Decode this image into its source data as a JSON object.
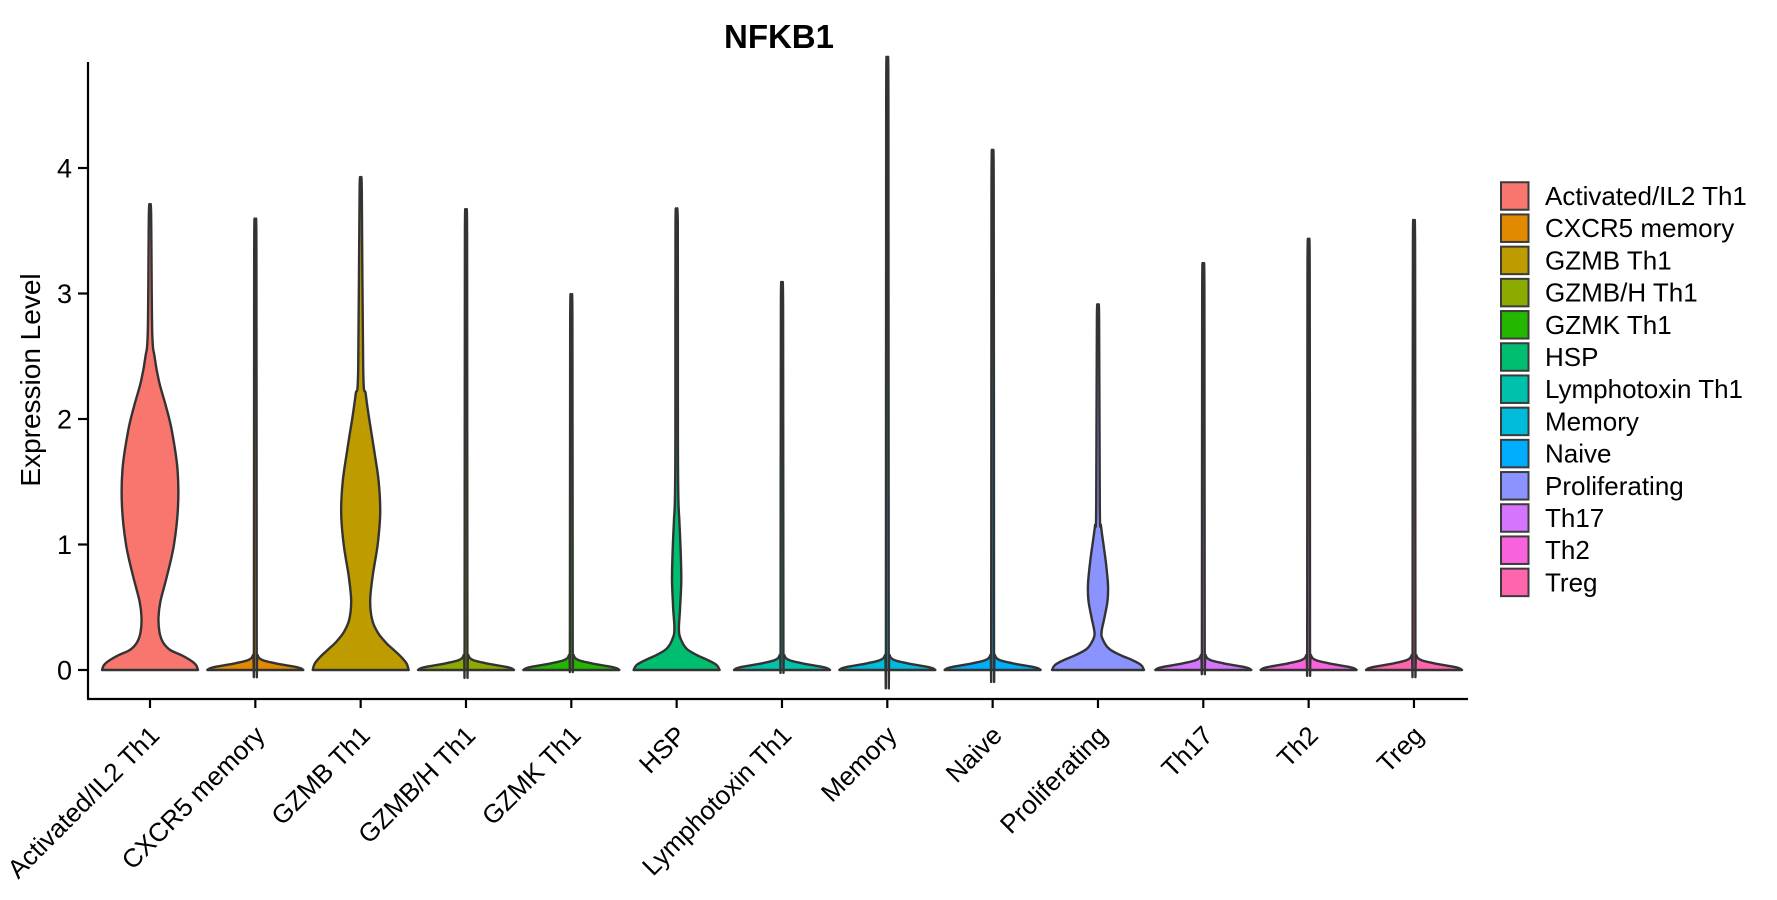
{
  "title": "NFKB1",
  "y_axis": {
    "label": "Expression Level",
    "ticks": [
      "0",
      "1",
      "2",
      "3",
      "4"
    ]
  },
  "legend": {
    "position": "right",
    "items": [
      {
        "label": "Activated/IL2 Th1",
        "color": "#F8766D"
      },
      {
        "label": "CXCR5 memory",
        "color": "#E18A00"
      },
      {
        "label": "GZMB Th1",
        "color": "#BE9C00"
      },
      {
        "label": "GZMB/H Th1",
        "color": "#8CAB00"
      },
      {
        "label": "GZMK Th1",
        "color": "#24B700"
      },
      {
        "label": "HSP",
        "color": "#00BE70"
      },
      {
        "label": "Lymphotoxin Th1",
        "color": "#00C1AB"
      },
      {
        "label": "Memory",
        "color": "#00BBDA"
      },
      {
        "label": "Naive",
        "color": "#00ACFC"
      },
      {
        "label": "Proliferating",
        "color": "#8B93FF"
      },
      {
        "label": "Th17",
        "color": "#D575FE"
      },
      {
        "label": "Th2",
        "color": "#F962DD"
      },
      {
        "label": "Treg",
        "color": "#FF65AC"
      }
    ]
  },
  "chart_data": {
    "type": "violin",
    "title": "NFKB1",
    "xlabel": "",
    "ylabel": "Expression Level",
    "ylim": [
      0,
      4.75
    ],
    "yticks": [
      0,
      1,
      2,
      3,
      4
    ],
    "grid": false,
    "legend_position": "right",
    "x_tick_rotation": -45,
    "categories": [
      "Activated/IL2 Th1",
      "CXCR5 memory",
      "GZMB Th1",
      "GZMB/H Th1",
      "GZMK Th1",
      "HSP",
      "Lymphotoxin Th1",
      "Memory",
      "Naive",
      "Proliferating",
      "Th17",
      "Th2",
      "Treg"
    ],
    "series": [
      {
        "name": "Activated/IL2 Th1",
        "color": "#F8766D",
        "max_expression": 3.64,
        "profile": [
          [
            0,
            48
          ],
          [
            0.04,
            46
          ],
          [
            0.08,
            40
          ],
          [
            0.12,
            31
          ],
          [
            0.16,
            20
          ],
          [
            0.22,
            13
          ],
          [
            0.3,
            9.5
          ],
          [
            0.42,
            8.5
          ],
          [
            0.55,
            10.5
          ],
          [
            0.75,
            17
          ],
          [
            1.0,
            24
          ],
          [
            1.3,
            28
          ],
          [
            1.6,
            27.5
          ],
          [
            1.9,
            22
          ],
          [
            2.1,
            16
          ],
          [
            2.3,
            9
          ],
          [
            2.5,
            4.5
          ],
          [
            2.7,
            2.2
          ]
        ]
      },
      {
        "name": "CXCR5 memory",
        "color": "#E18A00",
        "max_expression": 3.36,
        "profile": [
          [
            0,
            48
          ],
          [
            0.02,
            43
          ],
          [
            0.05,
            22
          ],
          [
            0.08,
            7
          ],
          [
            0.12,
            2.2
          ],
          [
            0.2,
            1.4
          ]
        ]
      },
      {
        "name": "GZMB Th1",
        "color": "#BE9C00",
        "max_expression": 3.82,
        "profile": [
          [
            0,
            48
          ],
          [
            0.05,
            46
          ],
          [
            0.1,
            41
          ],
          [
            0.16,
            33
          ],
          [
            0.22,
            25
          ],
          [
            0.3,
            17
          ],
          [
            0.4,
            11.5
          ],
          [
            0.55,
            9.5
          ],
          [
            0.75,
            12
          ],
          [
            1.0,
            17
          ],
          [
            1.25,
            19.5
          ],
          [
            1.5,
            18
          ],
          [
            1.75,
            13.5
          ],
          [
            2.0,
            8.5
          ],
          [
            2.2,
            5
          ],
          [
            2.4,
            2.5
          ]
        ]
      },
      {
        "name": "GZMB/H Th1",
        "color": "#8CAB00",
        "max_expression": 3.43,
        "profile": [
          [
            0,
            48
          ],
          [
            0.02,
            43
          ],
          [
            0.05,
            22
          ],
          [
            0.08,
            7
          ],
          [
            0.12,
            2.2
          ],
          [
            0.2,
            1.4
          ]
        ]
      },
      {
        "name": "GZMK Th1",
        "color": "#24B700",
        "max_expression": 2.8,
        "profile": [
          [
            0,
            48
          ],
          [
            0.02,
            43
          ],
          [
            0.05,
            22
          ],
          [
            0.08,
            7
          ],
          [
            0.12,
            2.2
          ],
          [
            0.2,
            1.4
          ]
        ]
      },
      {
        "name": "HSP",
        "color": "#00BE70",
        "max_expression": 3.56,
        "profile": [
          [
            0,
            43
          ],
          [
            0.04,
            40
          ],
          [
            0.08,
            31
          ],
          [
            0.12,
            20
          ],
          [
            0.17,
            10
          ],
          [
            0.25,
            4
          ],
          [
            0.33,
            2.2
          ],
          [
            0.5,
            3.5
          ],
          [
            0.72,
            4.6
          ],
          [
            1.0,
            3.8
          ],
          [
            1.2,
            2.6
          ],
          [
            1.4,
            1.6
          ],
          [
            2.0,
            1.2
          ]
        ]
      },
      {
        "name": "Lymphotoxin Th1",
        "color": "#00C1AB",
        "max_expression": 2.89,
        "profile": [
          [
            0,
            48
          ],
          [
            0.02,
            43
          ],
          [
            0.05,
            22
          ],
          [
            0.08,
            7
          ],
          [
            0.12,
            2.2
          ],
          [
            0.2,
            1.4
          ]
        ]
      },
      {
        "name": "Memory",
        "color": "#00BBDA",
        "max_expression": 4.56,
        "profile": [
          [
            0,
            48
          ],
          [
            0.02,
            43
          ],
          [
            0.05,
            22
          ],
          [
            0.08,
            7
          ],
          [
            0.12,
            2.2
          ],
          [
            0.2,
            1.4
          ]
        ]
      },
      {
        "name": "Naive",
        "color": "#00ACFC",
        "max_expression": 3.87,
        "profile": [
          [
            0,
            48
          ],
          [
            0.02,
            43
          ],
          [
            0.05,
            22
          ],
          [
            0.08,
            7
          ],
          [
            0.12,
            2.2
          ],
          [
            0.2,
            1.4
          ]
        ]
      },
      {
        "name": "Proliferating",
        "color": "#8B93FF",
        "max_expression": 2.8,
        "profile": [
          [
            0,
            46
          ],
          [
            0.04,
            43
          ],
          [
            0.08,
            34
          ],
          [
            0.12,
            22
          ],
          [
            0.17,
            11
          ],
          [
            0.24,
            5
          ],
          [
            0.3,
            3.5
          ],
          [
            0.42,
            6.5
          ],
          [
            0.55,
            9.5
          ],
          [
            0.68,
            10
          ],
          [
            0.85,
            8
          ],
          [
            1.0,
            5.5
          ],
          [
            1.15,
            3
          ],
          [
            1.3,
            1.8
          ]
        ]
      },
      {
        "name": "Th17",
        "color": "#D575FE",
        "max_expression": 3.03,
        "profile": [
          [
            0,
            48
          ],
          [
            0.02,
            43
          ],
          [
            0.05,
            22
          ],
          [
            0.08,
            7
          ],
          [
            0.12,
            2.2
          ],
          [
            0.2,
            1.4
          ]
        ]
      },
      {
        "name": "Th2",
        "color": "#F962DD",
        "max_expression": 3.21,
        "profile": [
          [
            0,
            48
          ],
          [
            0.02,
            43
          ],
          [
            0.05,
            22
          ],
          [
            0.08,
            7
          ],
          [
            0.12,
            2.2
          ],
          [
            0.2,
            1.4
          ]
        ]
      },
      {
        "name": "Treg",
        "color": "#FF65AC",
        "max_expression": 3.35,
        "profile": [
          [
            0,
            48
          ],
          [
            0.02,
            43
          ],
          [
            0.05,
            22
          ],
          [
            0.08,
            7
          ],
          [
            0.12,
            2.2
          ],
          [
            0.2,
            1.4
          ]
        ]
      }
    ]
  }
}
